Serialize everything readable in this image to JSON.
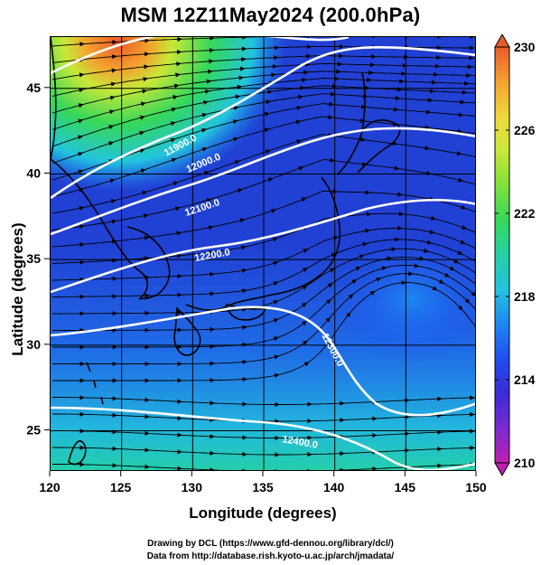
{
  "title": "MSM 12Z11May2024 (200.0hPa)",
  "x_axis": {
    "label": "Longitude (degrees)",
    "ticks": [
      "120",
      "125",
      "130",
      "135",
      "140",
      "145",
      "150"
    ]
  },
  "y_axis": {
    "label": "Latitude  (degrees)",
    "ticks": [
      "25",
      "30",
      "35",
      "40",
      "45"
    ]
  },
  "colorbar": {
    "min": 210,
    "max": 230,
    "ticks": [
      "230",
      "226",
      "222",
      "218",
      "214",
      "210"
    ],
    "colors": [
      "#c020b0",
      "#7a2bd0",
      "#3b2bd8",
      "#1f4ef0",
      "#1e86f2",
      "#22c4de",
      "#24d0a8",
      "#35d85a",
      "#7fe03a",
      "#c8e838",
      "#f0d83a",
      "#f4a02e",
      "#ec5a2c"
    ]
  },
  "contours": [
    {
      "label": "11900.0"
    },
    {
      "label": "12000.0"
    },
    {
      "label": "12100.0"
    },
    {
      "label": "12200.0"
    },
    {
      "label": "12300.0"
    },
    {
      "label": "12400.0"
    }
  ],
  "credits": {
    "line1": "Drawing by DCL (https://www.gfd-dennou.org/library/dcl/)",
    "line2": "Data from http://database.rish.kyoto-u.ac.jp/arch/jmadata/"
  },
  "colors": {
    "deep_blue": "#1f33c8",
    "mid_blue": "#2a5ae0",
    "cyan": "#2ac4d8",
    "green": "#3cd860",
    "yellow": "#d8e63c",
    "orange": "#f07a2c",
    "contour": "#ffffff",
    "streamline": "#000000"
  }
}
